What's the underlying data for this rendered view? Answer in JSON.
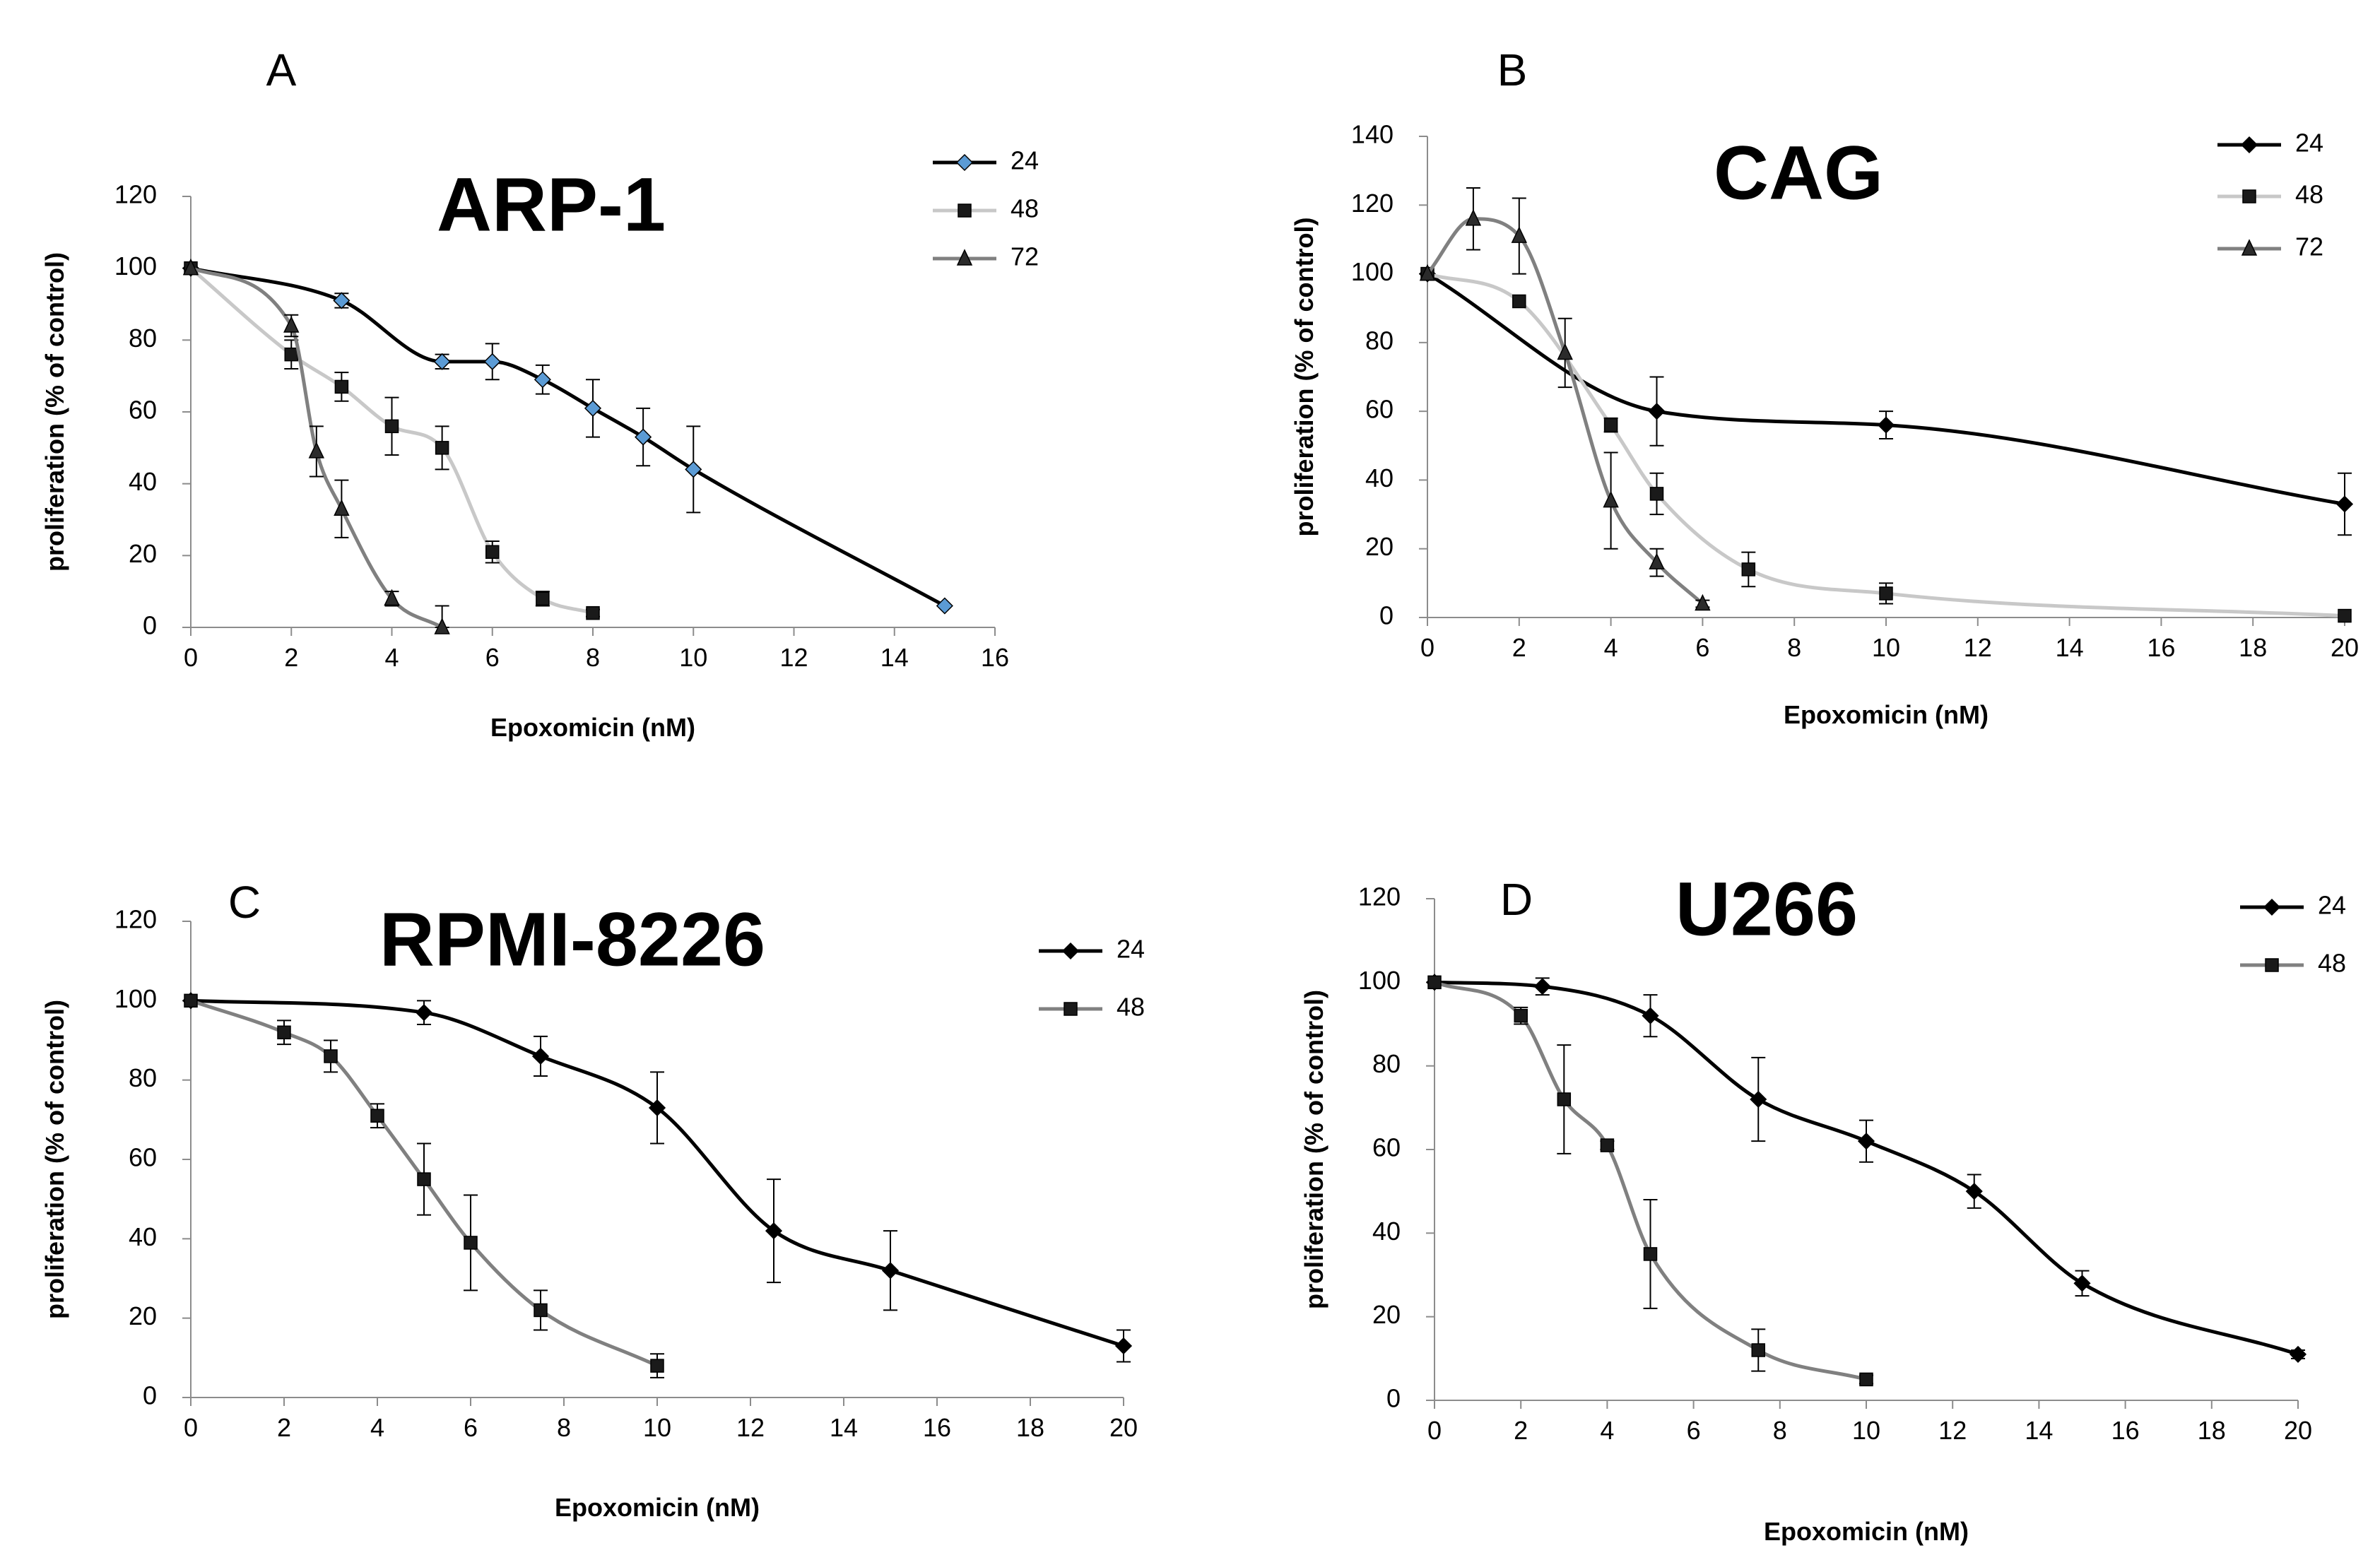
{
  "figure": {
    "background": "#ffffff"
  },
  "chart_data": [
    {
      "type": "line",
      "panel_label": "A",
      "title": "ARP-1",
      "xlabel": "Epoxomicin (nM)",
      "ylabel": "proliferation (% of control)",
      "xlim": [
        0,
        16
      ],
      "ylim": [
        0,
        120
      ],
      "xticks": [
        0,
        2,
        4,
        6,
        8,
        10,
        12,
        14,
        16
      ],
      "yticks": [
        0,
        20,
        40,
        60,
        80,
        100,
        120
      ],
      "grid": false,
      "legend_position": "top-right",
      "series": [
        {
          "name": "24",
          "color": "#000000",
          "marker_fill": "#5b9bd5",
          "marker": "diamond",
          "x": [
            0,
            3,
            5,
            6,
            7,
            8,
            9,
            10,
            15
          ],
          "y": [
            100,
            91,
            74,
            74,
            69,
            61,
            53,
            44,
            6
          ],
          "err": [
            0,
            2,
            2,
            5,
            4,
            8,
            8,
            12,
            0
          ]
        },
        {
          "name": "48",
          "color": "#c8c8c8",
          "marker": "square",
          "x": [
            0,
            2,
            3,
            4,
            5,
            6,
            7,
            8
          ],
          "y": [
            100,
            76,
            67,
            56,
            50,
            21,
            8,
            4
          ],
          "err": [
            0,
            4,
            4,
            8,
            6,
            3,
            2,
            1
          ]
        },
        {
          "name": "72",
          "color": "#808080",
          "marker": "triangle",
          "x": [
            0,
            2,
            2.5,
            3,
            4,
            5
          ],
          "y": [
            100,
            84,
            49,
            33,
            8,
            0
          ],
          "err": [
            0,
            3,
            7,
            8,
            2,
            6
          ]
        }
      ]
    },
    {
      "type": "line",
      "panel_label": "B",
      "title": "CAG",
      "xlabel": "Epoxomicin (nM)",
      "ylabel": "proliferation (% of control)",
      "xlim": [
        0,
        20
      ],
      "ylim": [
        0,
        140
      ],
      "xticks": [
        0,
        2,
        4,
        6,
        8,
        10,
        12,
        14,
        16,
        18,
        20
      ],
      "yticks": [
        0,
        20,
        40,
        60,
        80,
        100,
        120,
        140
      ],
      "grid": false,
      "legend_position": "top-right",
      "series": [
        {
          "name": "24",
          "color": "#000000",
          "marker": "diamond",
          "x": [
            0,
            5,
            10,
            20
          ],
          "y": [
            100,
            60,
            56,
            33
          ],
          "err": [
            0,
            10,
            4,
            9
          ]
        },
        {
          "name": "48",
          "color": "#c8c8c8",
          "marker": "square",
          "x": [
            0,
            2,
            4,
            5,
            7,
            10,
            20
          ],
          "y": [
            100,
            92,
            56,
            36,
            14,
            7,
            0.5
          ],
          "err": [
            0,
            0,
            2,
            6,
            5,
            3,
            0
          ]
        },
        {
          "name": "72",
          "color": "#808080",
          "marker": "triangle",
          "x": [
            0,
            1,
            2,
            3,
            4,
            5,
            6
          ],
          "y": [
            100,
            116,
            111,
            77,
            34,
            16,
            4
          ],
          "err": [
            0,
            9,
            11,
            10,
            14,
            4,
            1
          ]
        }
      ]
    },
    {
      "type": "line",
      "panel_label": "C",
      "title": "RPMI-8226",
      "xlabel": "Epoxomicin (nM)",
      "ylabel": "proliferation (% of control)",
      "xlim": [
        0,
        20
      ],
      "ylim": [
        0,
        120
      ],
      "xticks": [
        0,
        2,
        4,
        6,
        8,
        10,
        12,
        14,
        16,
        18,
        20
      ],
      "yticks": [
        0,
        20,
        40,
        60,
        80,
        100,
        120
      ],
      "grid": false,
      "legend_position": "top-right",
      "series": [
        {
          "name": "24",
          "color": "#000000",
          "marker": "diamond",
          "x": [
            0,
            5,
            7.5,
            10,
            12.5,
            15,
            20
          ],
          "y": [
            100,
            97,
            86,
            73,
            42,
            32,
            13
          ],
          "err": [
            0,
            3,
            5,
            9,
            13,
            10,
            4
          ]
        },
        {
          "name": "48",
          "color": "#808080",
          "marker": "square",
          "x": [
            0,
            2,
            3,
            4,
            5,
            6,
            7.5,
            10
          ],
          "y": [
            100,
            92,
            86,
            71,
            55,
            39,
            22,
            8
          ],
          "err": [
            0,
            3,
            4,
            3,
            9,
            12,
            5,
            3
          ]
        }
      ]
    },
    {
      "type": "line",
      "panel_label": "D",
      "title": "U266",
      "xlabel": "Epoxomicin (nM)",
      "ylabel": "proliferation (% of control)",
      "xlim": [
        0,
        20
      ],
      "ylim": [
        0,
        120
      ],
      "xticks": [
        0,
        2,
        4,
        6,
        8,
        10,
        12,
        14,
        16,
        18,
        20
      ],
      "yticks": [
        0,
        20,
        40,
        60,
        80,
        100,
        120
      ],
      "grid": false,
      "legend_position": "top-right",
      "series": [
        {
          "name": "24",
          "color": "#000000",
          "marker": "diamond",
          "x": [
            0,
            2.5,
            5,
            7.5,
            10,
            12.5,
            15,
            20
          ],
          "y": [
            100,
            99,
            92,
            72,
            62,
            50,
            28,
            11
          ],
          "err": [
            0,
            2,
            5,
            10,
            5,
            4,
            3,
            1
          ]
        },
        {
          "name": "48",
          "color": "#808080",
          "marker": "square",
          "x": [
            0,
            2,
            3,
            4,
            5,
            7.5,
            10
          ],
          "y": [
            100,
            92,
            72,
            61,
            35,
            12,
            5
          ],
          "err": [
            0,
            2,
            13,
            1,
            13,
            5,
            1
          ]
        }
      ]
    }
  ]
}
